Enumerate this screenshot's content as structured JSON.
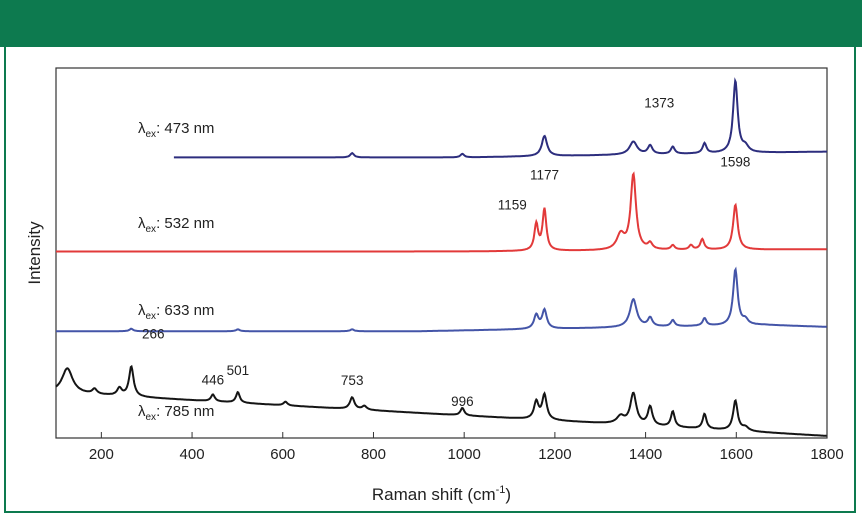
{
  "banner": {
    "color": "#0d7a4f"
  },
  "chart_data": {
    "type": "line",
    "xlabel": "Raman shift (cm",
    "xlabel_sup": "-1",
    "xlabel_end": ")",
    "ylabel": "Intensity",
    "xlim": [
      100,
      1800
    ],
    "xticks": [
      200,
      400,
      600,
      800,
      1000,
      1200,
      1400,
      1600,
      1800
    ],
    "grid": false,
    "yaxis_ticks": false,
    "series": [
      {
        "name_prefix": "λ",
        "name_sub": "ex",
        "name_suffix": ": 473 nm",
        "color": "#2d2e7e",
        "offset": 3.0,
        "x_start": 360,
        "peaks": [
          [
            753,
            0.06,
            5
          ],
          [
            996,
            0.05,
            5
          ],
          [
            1177,
            0.28,
            7
          ],
          [
            1373,
            0.18,
            10
          ],
          [
            1410,
            0.12,
            6
          ],
          [
            1460,
            0.1,
            5
          ],
          [
            1530,
            0.14,
            5
          ],
          [
            1598,
            1.0,
            6
          ],
          [
            1620,
            0.08,
            8
          ]
        ]
      },
      {
        "name_prefix": "λ",
        "name_sub": "ex",
        "name_suffix": ": 532 nm",
        "color": "#e23a3a",
        "offset": 2.0,
        "x_start": 100,
        "peaks": [
          [
            1159,
            0.35,
            5
          ],
          [
            1177,
            0.55,
            5
          ],
          [
            1345,
            0.2,
            10
          ],
          [
            1373,
            1.0,
            7
          ],
          [
            1410,
            0.08,
            6
          ],
          [
            1460,
            0.06,
            5
          ],
          [
            1500,
            0.06,
            5
          ],
          [
            1525,
            0.14,
            5
          ],
          [
            1598,
            0.6,
            6
          ]
        ],
        "peak_labels": [
          {
            "x": 1159,
            "text": "1159"
          },
          {
            "x": 1177,
            "text": "1177"
          },
          {
            "x": 1373,
            "text": "1373"
          },
          {
            "x": 1598,
            "text": "1598"
          }
        ]
      },
      {
        "name_prefix": "λ",
        "name_sub": "ex",
        "name_suffix": ": 633 nm",
        "color": "#4455a8",
        "offset": 1.0,
        "x_start": 100,
        "peaks": [
          [
            266,
            0.04,
            5
          ],
          [
            501,
            0.03,
            5
          ],
          [
            753,
            0.03,
            5
          ],
          [
            1159,
            0.22,
            6
          ],
          [
            1177,
            0.3,
            6
          ],
          [
            1373,
            0.45,
            9
          ],
          [
            1410,
            0.14,
            6
          ],
          [
            1460,
            0.1,
            5
          ],
          [
            1530,
            0.12,
            5
          ],
          [
            1598,
            0.9,
            6
          ],
          [
            1620,
            0.08,
            7
          ]
        ]
      },
      {
        "name_prefix": "λ",
        "name_sub": "ex",
        "name_suffix": ": 785 nm",
        "color": "#151515",
        "offset": 0.0,
        "x_start": 100,
        "peaks": [
          [
            125,
            0.4,
            14
          ],
          [
            185,
            0.08,
            6
          ],
          [
            240,
            0.12,
            6
          ],
          [
            266,
            0.48,
            6
          ],
          [
            446,
            0.11,
            5
          ],
          [
            501,
            0.17,
            5
          ],
          [
            606,
            0.06,
            5
          ],
          [
            753,
            0.19,
            6
          ],
          [
            780,
            0.06,
            6
          ],
          [
            996,
            0.12,
            5
          ],
          [
            1159,
            0.28,
            6
          ],
          [
            1177,
            0.4,
            6
          ],
          [
            1345,
            0.12,
            10
          ],
          [
            1373,
            0.5,
            8
          ],
          [
            1410,
            0.3,
            6
          ],
          [
            1460,
            0.25,
            5
          ],
          [
            1530,
            0.24,
            5
          ],
          [
            1598,
            0.48,
            6
          ],
          [
            1620,
            0.06,
            8
          ]
        ],
        "peak_labels": [
          {
            "x": 266,
            "text": "266"
          },
          {
            "x": 446,
            "text": "446"
          },
          {
            "x": 501,
            "text": "501"
          },
          {
            "x": 753,
            "text": "753"
          },
          {
            "x": 996,
            "text": "996"
          }
        ]
      }
    ]
  }
}
